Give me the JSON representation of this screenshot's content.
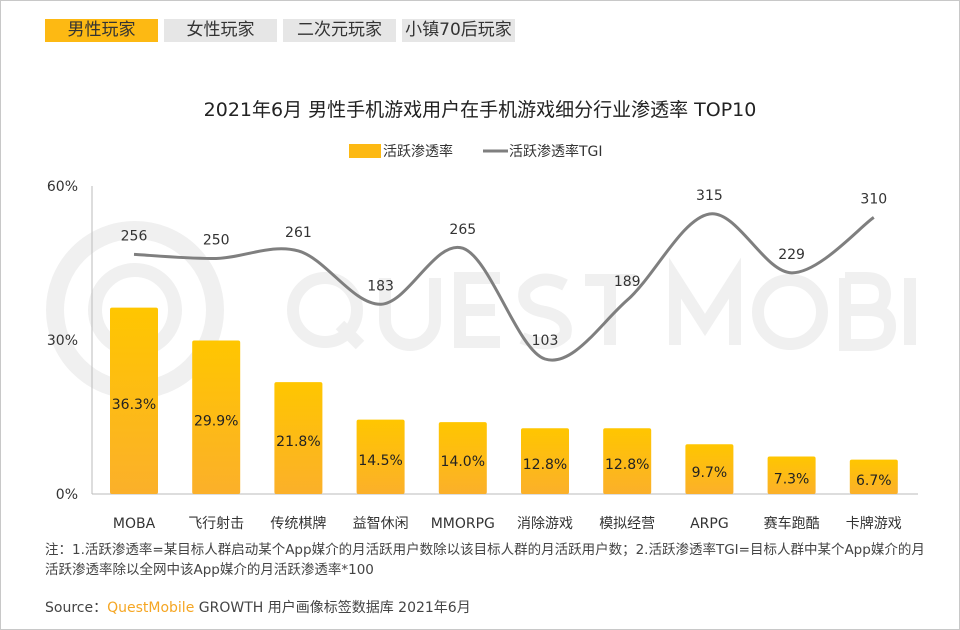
{
  "tabs": [
    {
      "label": "男性玩家",
      "active": true
    },
    {
      "label": "女性玩家",
      "active": false
    },
    {
      "label": "二次元玩家",
      "active": false
    },
    {
      "label": "小镇70后玩家",
      "active": false
    }
  ],
  "watermark": "QUEST MOBILE",
  "chart_data": {
    "type": "bar+line",
    "title": "2021年6月 男性手机游戏用户在手机游戏细分行业渗透率 TOP10",
    "legend_position": "top",
    "categories": [
      "MOBA",
      "飞行射击",
      "传统棋牌",
      "益智休闲",
      "MMORPG",
      "消除游戏",
      "模拟经营",
      "ARPG",
      "赛车跑酷",
      "卡牌游戏"
    ],
    "series": [
      {
        "name": "活跃渗透率",
        "type": "bar",
        "values": [
          36.3,
          29.9,
          21.8,
          14.5,
          14.0,
          12.8,
          12.8,
          9.7,
          7.3,
          6.7
        ],
        "labels": [
          "36.3%",
          "29.9%",
          "21.8%",
          "14.5%",
          "14.0%",
          "12.8%",
          "12.8%",
          "9.7%",
          "7.3%",
          "6.7%"
        ],
        "color": "#fdb913"
      },
      {
        "name": "活跃渗透率TGI",
        "type": "line",
        "values": [
          256,
          250,
          261,
          183,
          265,
          103,
          189,
          315,
          229,
          310
        ],
        "color": "#7f7f7f"
      }
    ],
    "y_ticks": [
      "0%",
      "30%",
      "60%"
    ],
    "ylim": [
      0,
      60
    ],
    "grid": false
  },
  "note": "注：1.活跃渗透率=某目标人群启动某个App媒介的月活跃用户数除以该目标人群的月活跃用户数；2.活跃渗透率TGI=目标人群中某个App媒介的月活跃渗透率除以全网中该App媒介的月活跃渗透率*100",
  "source": {
    "prefix": "Source：",
    "brand": "QuestMobile",
    "text": " GROWTH 用户画像标签数据库 2021年6月"
  }
}
